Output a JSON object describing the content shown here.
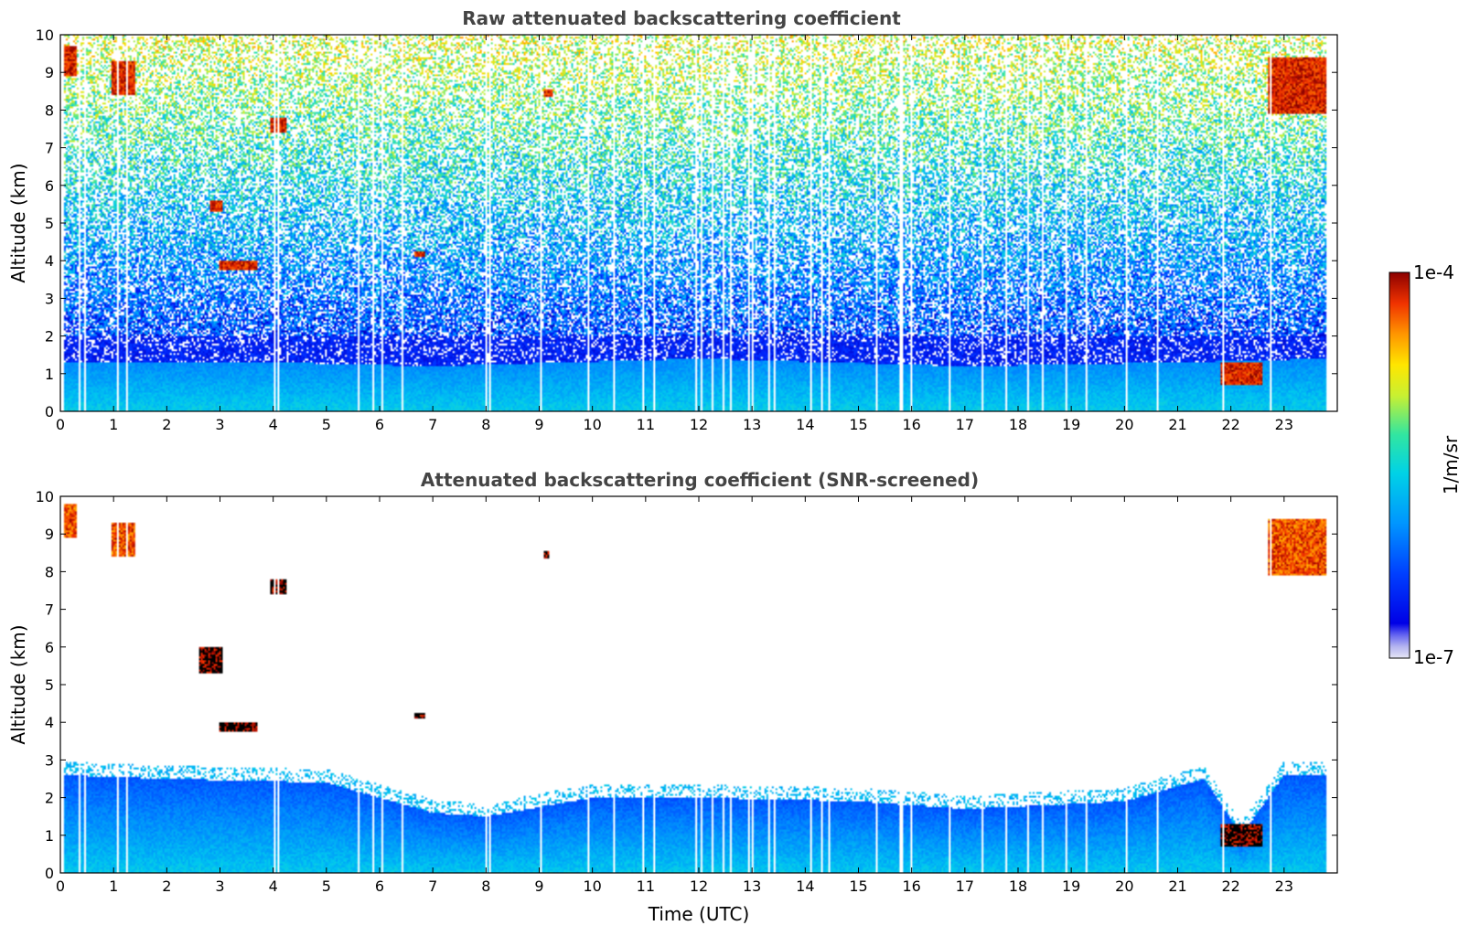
{
  "chart_data": [
    {
      "type": "heatmap",
      "title": "Raw attenuated backscattering coefficient",
      "xlabel": "",
      "ylabel": "Altitude (km)",
      "xlim": [
        0,
        24
      ],
      "ylim": [
        0,
        10
      ],
      "xticks": [
        "0",
        "1",
        "2",
        "3",
        "4",
        "5",
        "6",
        "7",
        "8",
        "9",
        "10",
        "11",
        "12",
        "13",
        "14",
        "15",
        "16",
        "17",
        "18",
        "19",
        "20",
        "21",
        "22",
        "23"
      ],
      "yticks": [
        "0",
        "1",
        "2",
        "3",
        "4",
        "5",
        "6",
        "7",
        "8",
        "9",
        "10"
      ],
      "data_end_hour": 23.8,
      "boundary_layer_top_km": [
        [
          0,
          1.3
        ],
        [
          4,
          1.3
        ],
        [
          7,
          1.2
        ],
        [
          12,
          1.4
        ],
        [
          17,
          1.2
        ],
        [
          21,
          1.3
        ],
        [
          23.8,
          1.4
        ]
      ],
      "dense_noise_top_km": 2.0,
      "features": [
        {
          "kind": "cirrus",
          "t0": 0.0,
          "t1": 0.3,
          "z0": 8.9,
          "z1": 9.7,
          "level": "high"
        },
        {
          "kind": "cirrus",
          "t0": 0.95,
          "t1": 1.4,
          "z0": 8.4,
          "z1": 9.3,
          "level": "high"
        },
        {
          "kind": "cloud",
          "t0": 3.95,
          "t1": 4.25,
          "z0": 7.4,
          "z1": 7.8,
          "level": "high"
        },
        {
          "kind": "cloud",
          "t0": 2.8,
          "t1": 3.05,
          "z0": 5.3,
          "z1": 5.6,
          "level": "high"
        },
        {
          "kind": "cloud",
          "t0": 3.0,
          "t1": 3.7,
          "z0": 3.75,
          "z1": 4.0,
          "level": "high"
        },
        {
          "kind": "cloud",
          "t0": 6.65,
          "t1": 6.85,
          "z0": 4.1,
          "z1": 4.25,
          "level": "high"
        },
        {
          "kind": "cloud",
          "t0": 9.1,
          "t1": 9.25,
          "z0": 8.35,
          "z1": 8.55,
          "level": "high"
        },
        {
          "kind": "cirrus",
          "t0": 22.7,
          "t1": 23.8,
          "z0": 7.9,
          "z1": 9.4,
          "level": "high"
        },
        {
          "kind": "cloud",
          "t0": 21.8,
          "t1": 22.6,
          "z0": 0.7,
          "z1": 1.3,
          "level": "high"
        }
      ],
      "colorbar": {
        "min_label": "1e-7",
        "max_label": "1e-4",
        "unit": "1/m/sr",
        "scale": "log",
        "min": 1e-07,
        "max": 0.0001
      }
    },
    {
      "type": "heatmap",
      "title": "Attenuated backscattering coefficient (SNR-screened)",
      "xlabel": "Time (UTC)",
      "ylabel": "Altitude (km)",
      "xlim": [
        0,
        24
      ],
      "ylim": [
        0,
        10
      ],
      "xticks": [
        "0",
        "1",
        "2",
        "3",
        "4",
        "5",
        "6",
        "7",
        "8",
        "9",
        "10",
        "11",
        "12",
        "13",
        "14",
        "15",
        "16",
        "17",
        "18",
        "19",
        "20",
        "21",
        "22",
        "23"
      ],
      "yticks": [
        "0",
        "1",
        "2",
        "3",
        "4",
        "5",
        "6",
        "7",
        "8",
        "9",
        "10"
      ],
      "data_end_hour": 23.8,
      "screened_layer_top_km": [
        [
          0,
          2.6
        ],
        [
          2,
          2.5
        ],
        [
          5,
          2.4
        ],
        [
          7,
          1.6
        ],
        [
          8,
          1.5
        ],
        [
          10,
          2.0
        ],
        [
          12,
          2.0
        ],
        [
          15,
          1.9
        ],
        [
          17,
          1.7
        ],
        [
          20,
          1.9
        ],
        [
          21.5,
          2.5
        ],
        [
          22.2,
          1.0
        ],
        [
          23,
          2.6
        ],
        [
          23.8,
          2.6
        ]
      ],
      "features": [
        {
          "kind": "cirrus",
          "t0": 0.0,
          "t1": 0.3,
          "z0": 8.9,
          "z1": 9.8,
          "level": "high"
        },
        {
          "kind": "cirrus",
          "t0": 0.95,
          "t1": 1.4,
          "z0": 8.4,
          "z1": 9.3,
          "level": "high"
        },
        {
          "kind": "cloud",
          "t0": 3.95,
          "t1": 4.25,
          "z0": 7.4,
          "z1": 7.8,
          "level": "saturated"
        },
        {
          "kind": "cloud",
          "t0": 2.6,
          "t1": 3.05,
          "z0": 5.3,
          "z1": 6.0,
          "level": "saturated"
        },
        {
          "kind": "cloud",
          "t0": 3.0,
          "t1": 3.7,
          "z0": 3.75,
          "z1": 4.0,
          "level": "saturated"
        },
        {
          "kind": "cloud",
          "t0": 6.65,
          "t1": 6.85,
          "z0": 4.1,
          "z1": 4.25,
          "level": "saturated"
        },
        {
          "kind": "cloud",
          "t0": 9.1,
          "t1": 9.2,
          "z0": 8.35,
          "z1": 8.55,
          "level": "saturated"
        },
        {
          "kind": "cirrus",
          "t0": 22.7,
          "t1": 23.8,
          "z0": 7.9,
          "z1": 9.4,
          "level": "high"
        },
        {
          "kind": "cloud",
          "t0": 21.8,
          "t1": 22.6,
          "z0": 0.7,
          "z1": 1.3,
          "level": "saturated"
        }
      ]
    }
  ]
}
